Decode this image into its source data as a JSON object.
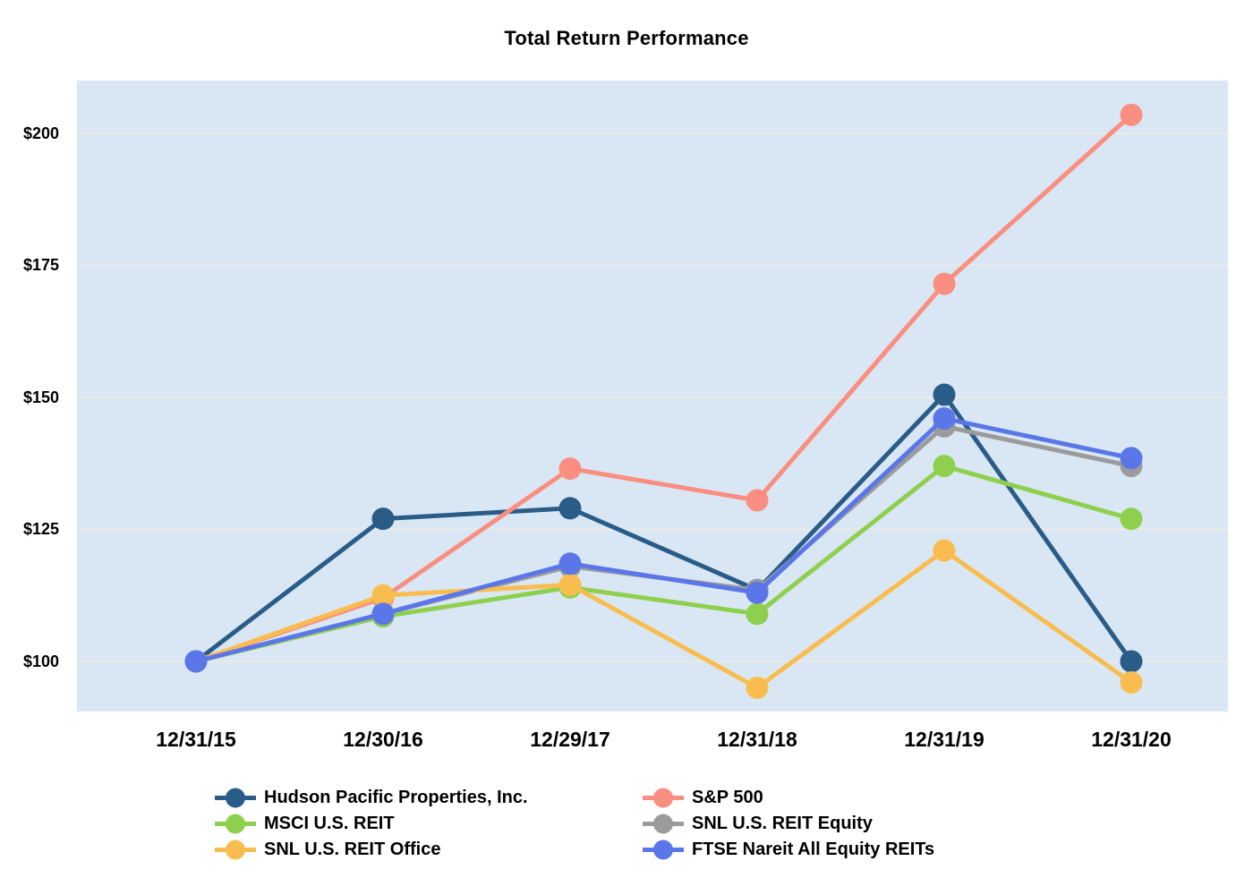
{
  "chart_data": {
    "type": "line",
    "title": "Total Return Performance",
    "categories": [
      "12/31/15",
      "12/30/16",
      "12/29/17",
      "12/31/18",
      "12/31/19",
      "12/31/20"
    ],
    "y_axis": {
      "tick_labels": [
        "$200",
        "$175",
        "$150",
        "$125",
        "$100"
      ],
      "tick_values": [
        200,
        175,
        150,
        125,
        100
      ],
      "ylim": [
        90.5,
        210
      ],
      "grid": true,
      "currency_prefix": "$"
    },
    "plot_background": "#d9e7f4",
    "gridline_color": "#e9e9e7",
    "series": [
      {
        "name": "Hudson Pacific Properties, Inc.",
        "color": "#2a5c88",
        "values": [
          100,
          127,
          129,
          113.5,
          150.5,
          100
        ]
      },
      {
        "name": "S&P 500",
        "color": "#fa8e80",
        "values": [
          100,
          112,
          136.5,
          130.5,
          171.5,
          203.5
        ]
      },
      {
        "name": "SNL U.S. REIT Equity",
        "color": "#9b9b9b",
        "values": [
          100,
          109,
          118,
          113.5,
          144.5,
          137
        ]
      },
      {
        "name": "MSCI U.S. REIT",
        "color": "#8ed04e",
        "values": [
          100,
          108.5,
          114,
          109,
          137,
          127
        ]
      },
      {
        "name": "SNL U.S. REIT Office",
        "color": "#f9bd4f",
        "values": [
          100,
          112.5,
          114.5,
          95,
          121,
          96
        ]
      },
      {
        "name": "FTSE Nareit All Equity REITs",
        "color": "#5b76e8",
        "values": [
          100,
          109,
          118.5,
          113,
          146,
          138.5
        ]
      }
    ],
    "legend": {
      "position": "bottom",
      "columns": [
        [
          0,
          3,
          4
        ],
        [
          1,
          2,
          5
        ]
      ]
    }
  }
}
